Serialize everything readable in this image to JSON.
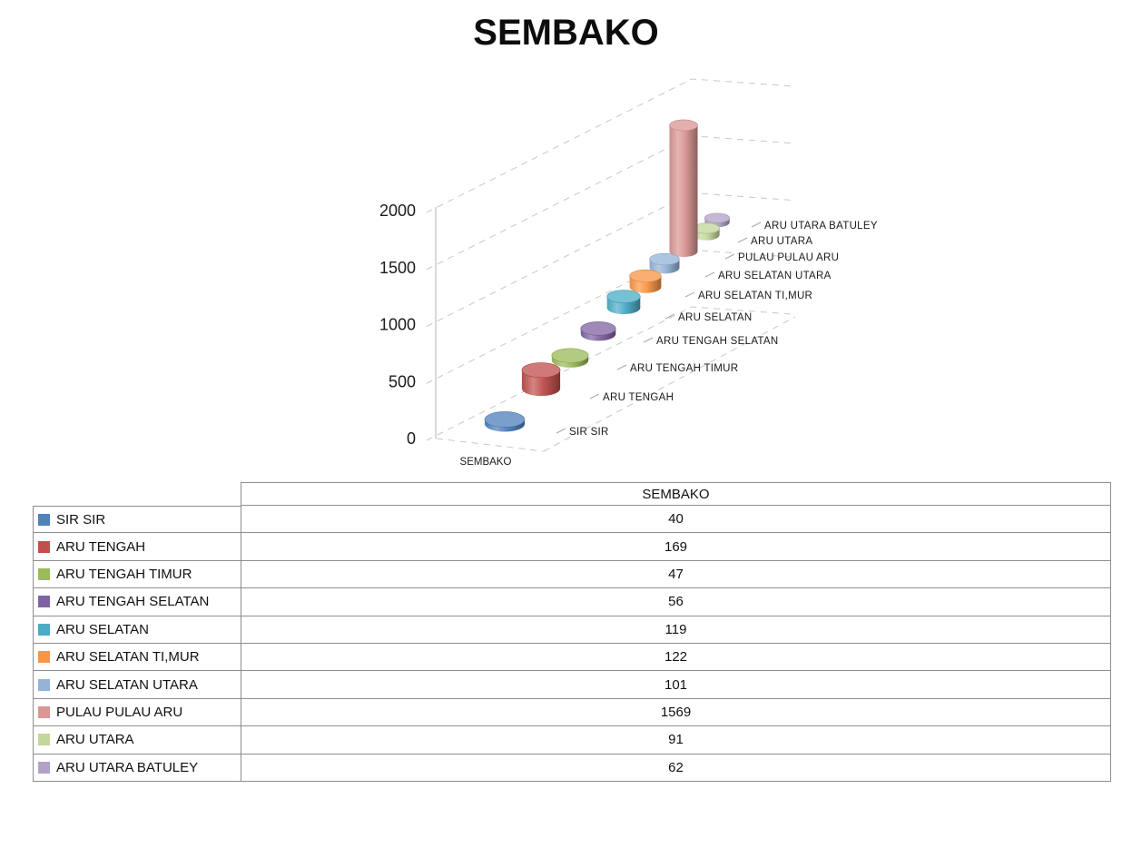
{
  "chart": {
    "title": "SEMBAKO",
    "category_axis_label": "SEMBAKO"
  },
  "chart_data": {
    "type": "bar",
    "subtype": "cylinder-3d",
    "title": "SEMBAKO",
    "categories": [
      "SEMBAKO"
    ],
    "series": [
      {
        "name": "SIR SIR",
        "values": [
          40
        ],
        "color": "#4F81BD"
      },
      {
        "name": "ARU TENGAH",
        "values": [
          169
        ],
        "color": "#C0504D"
      },
      {
        "name": "ARU TENGAH TIMUR",
        "values": [
          47
        ],
        "color": "#9BBB59"
      },
      {
        "name": "ARU TENGAH SELATAN",
        "values": [
          56
        ],
        "color": "#8064A2"
      },
      {
        "name": "ARU SELATAN",
        "values": [
          119
        ],
        "color": "#4BACC6"
      },
      {
        "name": "ARU SELATAN TI,MUR",
        "values": [
          122
        ],
        "color": "#F79646"
      },
      {
        "name": "ARU SELATAN UTARA",
        "values": [
          101
        ],
        "color": "#95B3D7"
      },
      {
        "name": "PULAU PULAU ARU",
        "values": [
          1569
        ],
        "color": "#D99694"
      },
      {
        "name": "ARU UTARA",
        "values": [
          91
        ],
        "color": "#C3D69B"
      },
      {
        "name": "ARU UTARA BATULEY",
        "values": [
          62
        ],
        "color": "#B3A2C7"
      }
    ],
    "ylim": [
      0,
      2000
    ],
    "y_tick_step": 500,
    "y_tick_labels": [
      "0",
      "500",
      "1000",
      "1500",
      "2000"
    ],
    "grid": true,
    "gridline_style": "dashed",
    "legend_position": "table-below",
    "background": "#ffffff"
  },
  "table": {
    "header": "SEMBAKO"
  }
}
